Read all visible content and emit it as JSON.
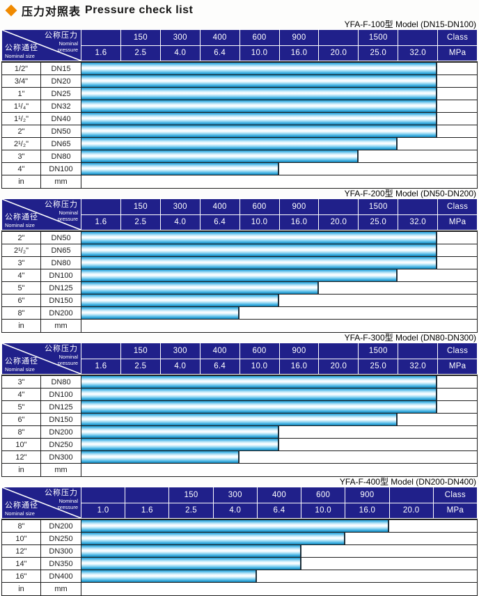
{
  "page_title": {
    "zh": "压力对照表",
    "en": "Pressure check list"
  },
  "header_labels": {
    "pressure_zh": "公称压力",
    "pressure_en_1": "Nominal",
    "pressure_en_2": "pressure",
    "size_zh": "公称通径",
    "size_en": "Nominal size",
    "class_label": "Class",
    "mpa_label": "MPa"
  },
  "colors": {
    "header_navy": "#20208a",
    "bar_cyan": "#2fa8dd",
    "accent_orange": "#f08a00",
    "grid_line": "#1c1c1c"
  },
  "tables": [
    {
      "model_title": "YFA-F-100型  Model (DN15-DN100)",
      "class_row": [
        "",
        "150",
        "300",
        "400",
        "600",
        "900",
        "",
        "1500",
        ""
      ],
      "mpa_row": [
        "1.6",
        "2.5",
        "4.0",
        "6.4",
        "10.0",
        "16.0",
        "20.0",
        "25.0",
        "32.0"
      ],
      "rows": [
        {
          "size": "1/2\"",
          "dn": "DN15",
          "max_mpa": "32.0"
        },
        {
          "size": "3/4\"",
          "dn": "DN20",
          "max_mpa": "32.0"
        },
        {
          "size": "1\"",
          "dn": "DN25",
          "max_mpa": "32.0"
        },
        {
          "size": "1¹/₄\"",
          "dn": "DN32",
          "max_mpa": "32.0"
        },
        {
          "size": "1¹/₂\"",
          "dn": "DN40",
          "max_mpa": "32.0"
        },
        {
          "size": "2\"",
          "dn": "DN50",
          "max_mpa": "32.0"
        },
        {
          "size": "2¹/₂\"",
          "dn": "DN65",
          "max_mpa": "25.0"
        },
        {
          "size": "3\"",
          "dn": "DN80",
          "max_mpa": "20.0"
        },
        {
          "size": "4\"",
          "dn": "DN100",
          "max_mpa": "10.0"
        }
      ],
      "unit_row": {
        "size": "in",
        "dn": "mm"
      }
    },
    {
      "model_title": "YFA-F-200型  Model (DN50-DN200)",
      "class_row": [
        "",
        "150",
        "300",
        "400",
        "600",
        "900",
        "",
        "1500",
        ""
      ],
      "mpa_row": [
        "1.6",
        "2.5",
        "4.0",
        "6.4",
        "10.0",
        "16.0",
        "20.0",
        "25.0",
        "32.0"
      ],
      "rows": [
        {
          "size": "2\"",
          "dn": "DN50",
          "max_mpa": "32.0"
        },
        {
          "size": "2¹/₂\"",
          "dn": "DN65",
          "max_mpa": "32.0"
        },
        {
          "size": "3\"",
          "dn": "DN80",
          "max_mpa": "32.0"
        },
        {
          "size": "4\"",
          "dn": "DN100",
          "max_mpa": "25.0"
        },
        {
          "size": "5\"",
          "dn": "DN125",
          "max_mpa": "16.0"
        },
        {
          "size": "6\"",
          "dn": "DN150",
          "max_mpa": "10.0"
        },
        {
          "size": "8\"",
          "dn": "DN200",
          "max_mpa": "6.4"
        }
      ],
      "unit_row": {
        "size": "in",
        "dn": "mm"
      }
    },
    {
      "model_title": "YFA-F-300型  Model (DN80-DN300)",
      "class_row": [
        "",
        "150",
        "300",
        "400",
        "600",
        "900",
        "",
        "1500",
        ""
      ],
      "mpa_row": [
        "1.6",
        "2.5",
        "4.0",
        "6.4",
        "10.0",
        "16.0",
        "20.0",
        "25.0",
        "32.0"
      ],
      "rows": [
        {
          "size": "3\"",
          "dn": "DN80",
          "max_mpa": "32.0"
        },
        {
          "size": "4\"",
          "dn": "DN100",
          "max_mpa": "32.0"
        },
        {
          "size": "5\"",
          "dn": "DN125",
          "max_mpa": "32.0"
        },
        {
          "size": "6\"",
          "dn": "DN150",
          "max_mpa": "25.0"
        },
        {
          "size": "8\"",
          "dn": "DN200",
          "max_mpa": "10.0"
        },
        {
          "size": "10\"",
          "dn": "DN250",
          "max_mpa": "10.0"
        },
        {
          "size": "12\"",
          "dn": "DN300",
          "max_mpa": "6.4"
        }
      ],
      "unit_row": {
        "size": "in",
        "dn": "mm"
      }
    },
    {
      "model_title": "YFA-F-400型  Model (DN200-DN400)",
      "class_row": [
        "",
        "",
        "150",
        "300",
        "400",
        "600",
        "900",
        ""
      ],
      "mpa_row": [
        "1.0",
        "1.6",
        "2.5",
        "4.0",
        "6.4",
        "10.0",
        "16.0",
        "20.0"
      ],
      "rows": [
        {
          "size": "8\"",
          "dn": "DN200",
          "max_mpa": "16.0"
        },
        {
          "size": "10\"",
          "dn": "DN250",
          "max_mpa": "10.0"
        },
        {
          "size": "12\"",
          "dn": "DN300",
          "max_mpa": "6.4"
        },
        {
          "size": "14\"",
          "dn": "DN350",
          "max_mpa": "6.4"
        },
        {
          "size": "16\"",
          "dn": "DN400",
          "max_mpa": "4.0"
        }
      ],
      "unit_row": {
        "size": "in",
        "dn": "mm"
      }
    }
  ]
}
